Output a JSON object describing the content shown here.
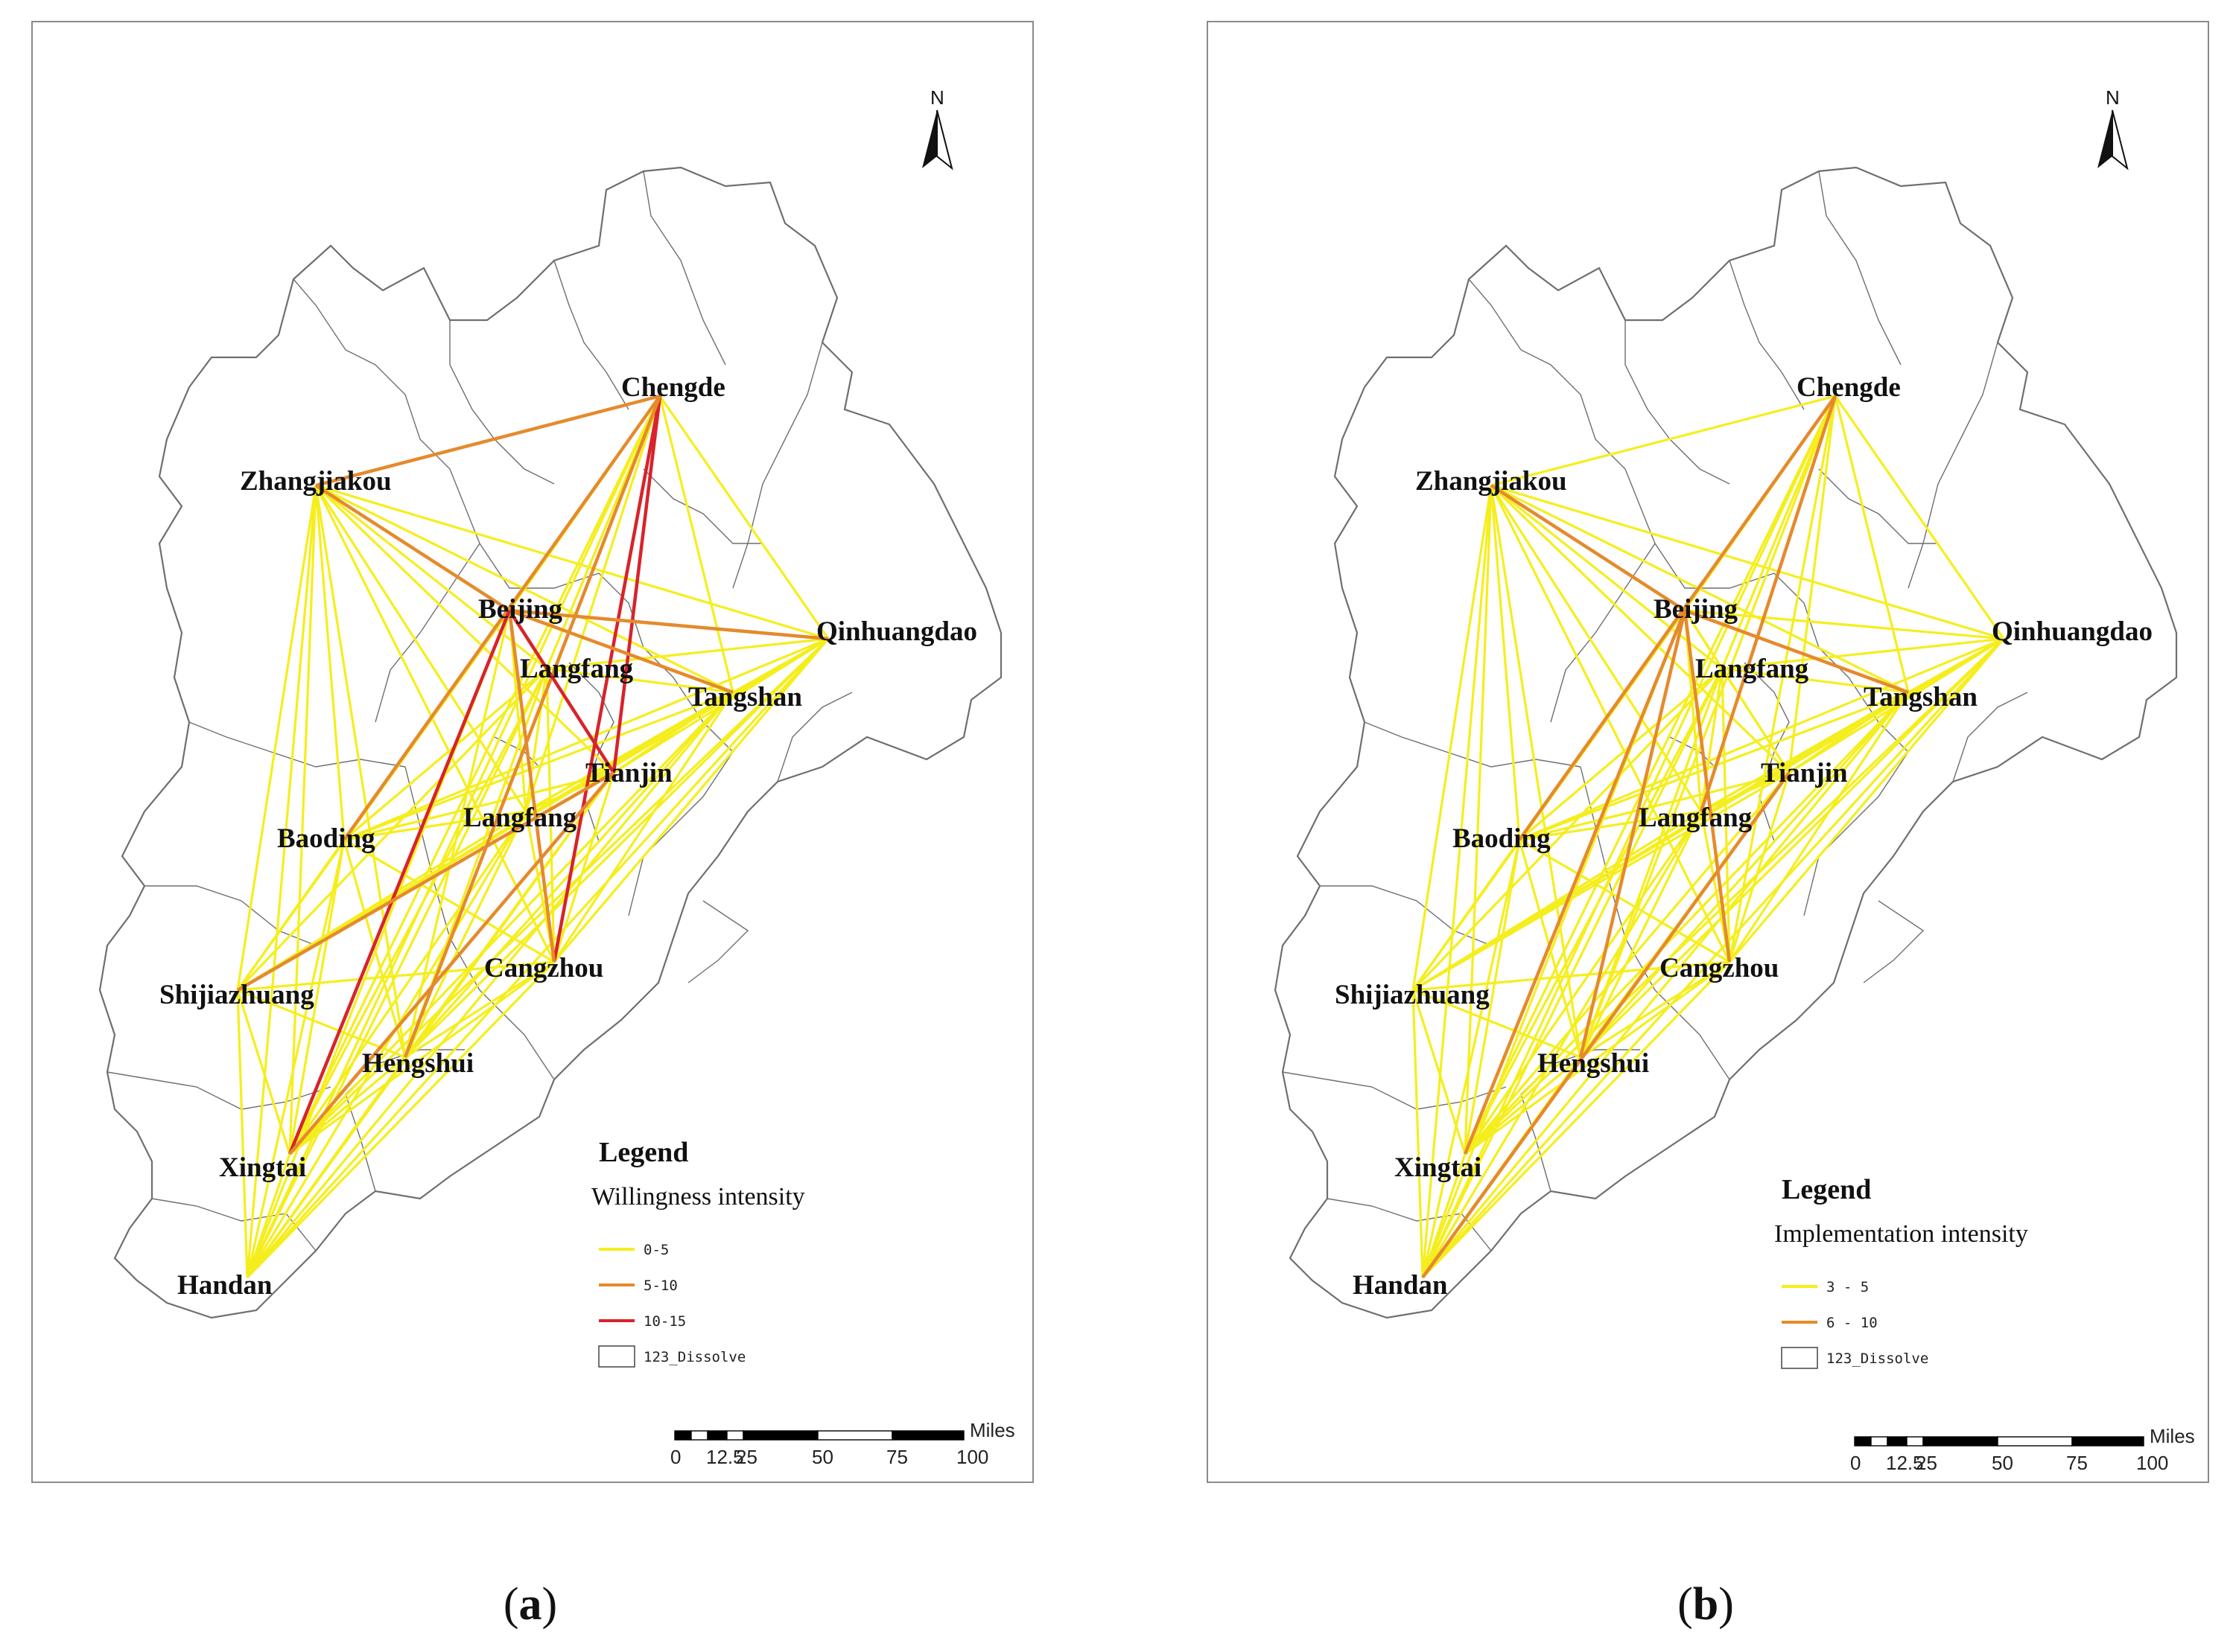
{
  "colors": {
    "low": "#f5ee1e",
    "mid": "#e58a2c",
    "high": "#d8232a",
    "outline": "#6f6f6f"
  },
  "cities": [
    {
      "id": "chengde",
      "label": "Chengde"
    },
    {
      "id": "zhangjiakou",
      "label": "Zhangjiakou"
    },
    {
      "id": "beijing",
      "label": "Beijing"
    },
    {
      "id": "langfang-north",
      "label": "Langfang"
    },
    {
      "id": "qinhuangdao",
      "label": "Qinhuangdao"
    },
    {
      "id": "tangshan",
      "label": "Tangshan"
    },
    {
      "id": "tianjin",
      "label": "Tianjin"
    },
    {
      "id": "baoding",
      "label": "Baoding"
    },
    {
      "id": "langfang",
      "label": "Langfang"
    },
    {
      "id": "cangzhou",
      "label": "Cangzhou"
    },
    {
      "id": "shijiazhuang",
      "label": "Shijiazhuang"
    },
    {
      "id": "hengshui",
      "label": "Hengshui"
    },
    {
      "id": "xingtai",
      "label": "Xingtai"
    },
    {
      "id": "handan",
      "label": "Handan"
    }
  ],
  "panels": {
    "a": {
      "caption_letter": "a",
      "north_label": "N",
      "legend": {
        "title": "Legend",
        "subtitle": "Willingness intensity",
        "items": [
          {
            "label": "0-5",
            "color": "#f5ee1e"
          },
          {
            "label": "5-10",
            "color": "#e58a2c"
          },
          {
            "label": "10-15",
            "color": "#d8232a"
          }
        ],
        "boundary_label": "123_Dissolve"
      },
      "scale": {
        "unit": "Miles",
        "ticks": [
          "0",
          "12.5",
          "25",
          "50",
          "75",
          "100"
        ]
      },
      "highlight_links": [
        [
          "zhangjiakou",
          "chengde",
          "mid"
        ],
        [
          "zhangjiakou",
          "beijing",
          "mid"
        ],
        [
          "beijing",
          "tianjin",
          "high"
        ],
        [
          "chengde",
          "tianjin",
          "high"
        ],
        [
          "chengde",
          "cangzhou",
          "high"
        ],
        [
          "chengde",
          "baoding",
          "mid"
        ],
        [
          "beijing",
          "tangshan",
          "mid"
        ],
        [
          "beijing",
          "qinhuangdao",
          "mid"
        ],
        [
          "beijing",
          "xingtai",
          "high"
        ],
        [
          "beijing",
          "cangzhou",
          "mid"
        ],
        [
          "shijiazhuang",
          "tianjin",
          "mid"
        ],
        [
          "tianjin",
          "xingtai",
          "mid"
        ],
        [
          "chengde",
          "hengshui",
          "mid"
        ]
      ]
    },
    "b": {
      "caption_letter": "b",
      "north_label": "N",
      "legend": {
        "title": "Legend",
        "subtitle": "Implementation intensity",
        "items": [
          {
            "label": "3 - 5",
            "color": "#f5ee1e"
          },
          {
            "label": "6 - 10",
            "color": "#e58a2c"
          }
        ],
        "boundary_label": "123_Dissolve"
      },
      "scale": {
        "unit": "Miles",
        "ticks": [
          "0",
          "12.5",
          "25",
          "50",
          "75",
          "100"
        ]
      },
      "highlight_links": [
        [
          "chengde",
          "langfang",
          "mid"
        ],
        [
          "beijing",
          "hengshui",
          "mid"
        ],
        [
          "beijing",
          "cangzhou",
          "mid"
        ],
        [
          "beijing",
          "xingtai",
          "mid"
        ],
        [
          "beijing",
          "tangshan",
          "mid"
        ],
        [
          "zhangjiakou",
          "beijing",
          "mid"
        ],
        [
          "tianjin",
          "handan",
          "mid"
        ],
        [
          "chengde",
          "baoding",
          "mid"
        ]
      ]
    }
  }
}
